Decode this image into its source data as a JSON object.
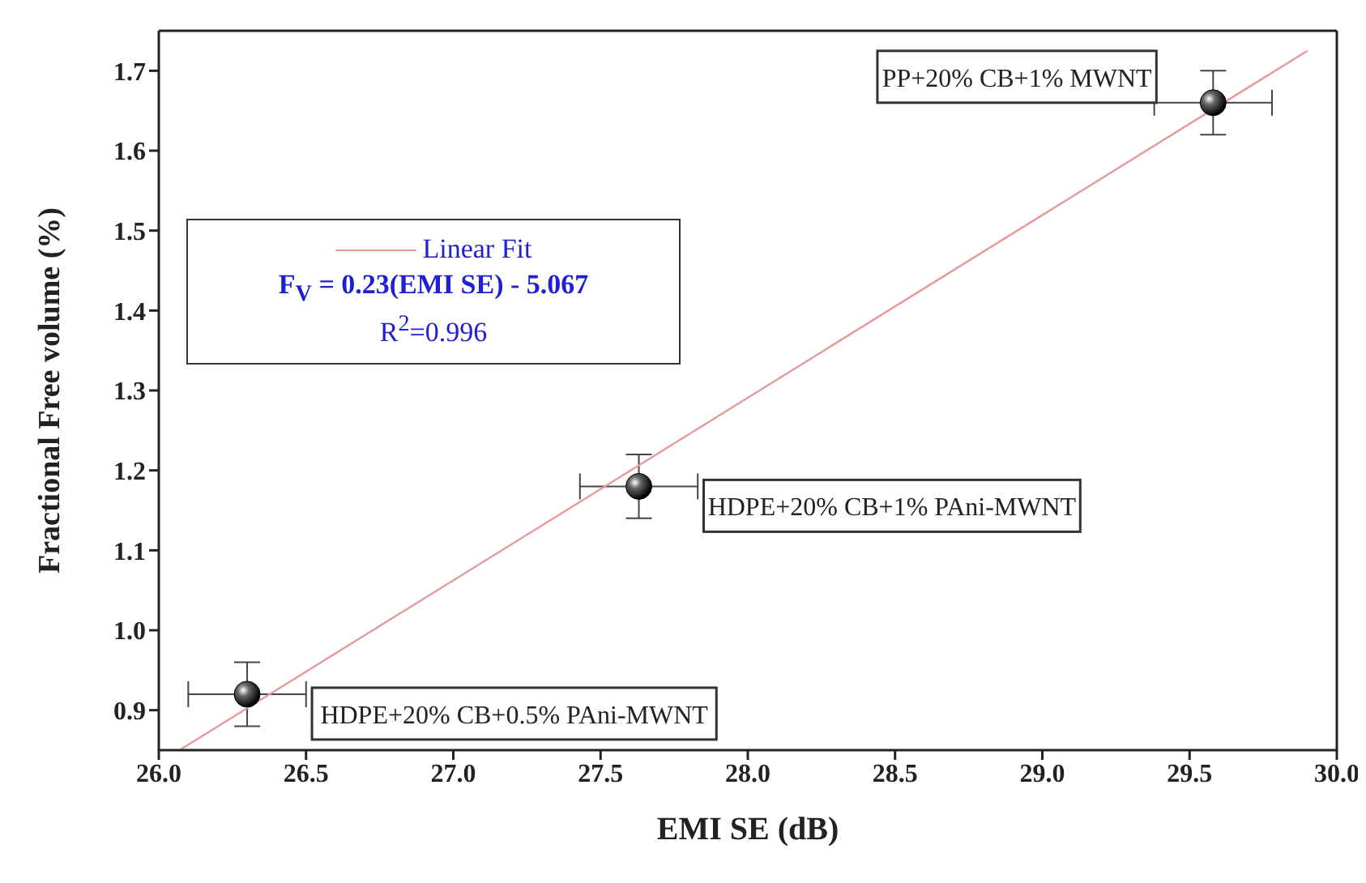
{
  "chart_data": {
    "type": "scatter",
    "xlabel": "EMI SE (dB)",
    "ylabel": "Fractional Free volume (%)",
    "xlim": [
      26,
      30
    ],
    "xticks": [
      {
        "value": 26,
        "label": "26.0"
      },
      26.5,
      {
        "value": 27,
        "label": "27.0"
      },
      27.5,
      {
        "value": 28,
        "label": "28.0"
      },
      28.5,
      {
        "value": 29,
        "label": "29.0"
      },
      29.5,
      {
        "value": 30,
        "label": "30.0"
      }
    ],
    "ylim": [
      0.85,
      1.75
    ],
    "yticks": [
      0.9,
      {
        "value": 1,
        "label": "1.0"
      },
      1.1,
      1.2,
      1.3,
      1.4,
      1.5,
      1.6,
      1.7
    ],
    "grid": false,
    "legend": "top left",
    "series": [
      {
        "color": "#000000",
        "marker": "circle",
        "x": [
          26.3,
          27.63,
          29.58
        ],
        "values": [
          0.92,
          1.18,
          1.66
        ],
        "errors": [
          0.04,
          0.04,
          0.04
        ],
        "xerrors": [
          0.2,
          0.2,
          0.2
        ]
      },
      {
        "type": "line",
        "name": "Linear Fit",
        "color": "#e89a9a",
        "line_style": "solid",
        "marker": "none",
        "x": [
          26.07,
          29.9
        ],
        "values": [
          0.85,
          1.725
        ]
      }
    ],
    "annotations": [
      "F$_{V}$ = 0.23(EMI SE) - 5.067",
      "R$^{2}$=0.996",
      {
        "text": "HDPE+20% CB+0.5% PAni-MWNT",
        "x": 26.3,
        "y": 0.92
      },
      {
        "text": "HDPE+20% CB+1% PAni-MWNT",
        "x": 27.63,
        "y": 1.18
      },
      {
        "text": "PP+20% CB+1% MWNT",
        "x": 29.58,
        "y": 1.66
      }
    ]
  }
}
